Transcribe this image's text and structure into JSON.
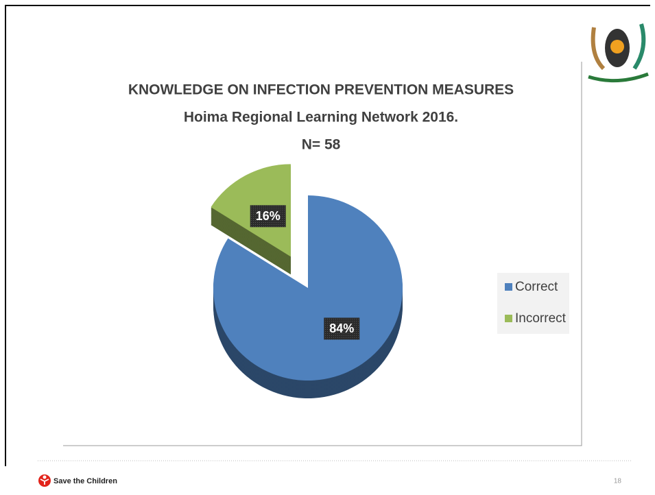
{
  "chart_data": {
    "type": "pie",
    "title": "KNOWLEDGE ON INFECTION PREVENTION MEASURES",
    "subtitle": "Hoima Regional Learning Network 2016.",
    "annotation": "N= 58",
    "categories": [
      "Correct",
      "Incorrect"
    ],
    "values": [
      84,
      16
    ],
    "value_labels": [
      "84%",
      "16%"
    ],
    "colors": [
      "#4f81bd",
      "#9bbb59"
    ],
    "legend": "right"
  },
  "footer": {
    "organization": "Save the Children",
    "page_number": 18
  }
}
